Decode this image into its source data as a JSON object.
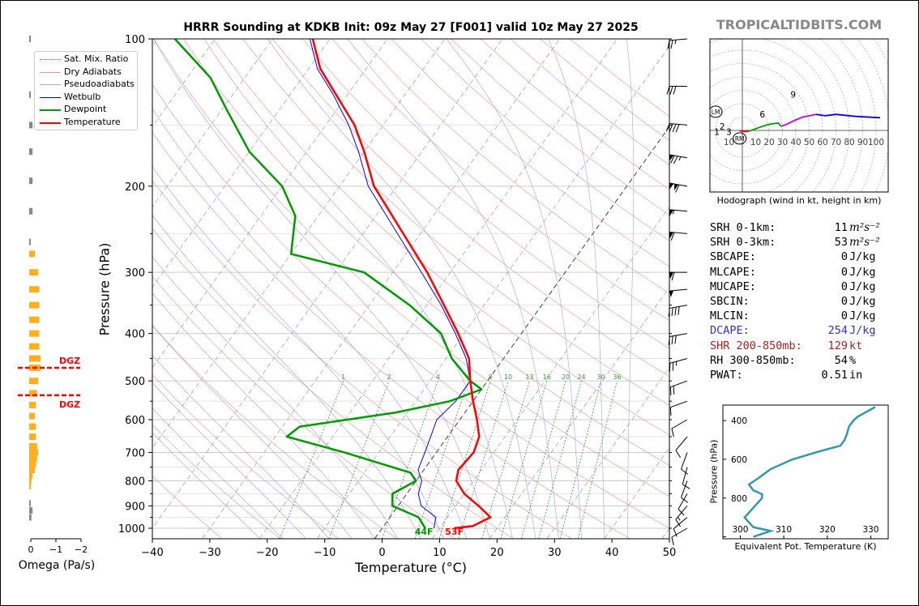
{
  "title": "HRRR Sounding at KDKB Init: 09z May 27 [F001] valid 10z May 27 2025",
  "site": "TROPICALTIDBITS.COM",
  "colors": {
    "temp": "#ff0000",
    "dew": "#009900",
    "wetbulb": "#0000ff",
    "dry": "#e89a9a",
    "moist": "#9a9ae0",
    "mix": "#3a9a3a",
    "dgz": "#ff0000",
    "omega": "#ffb020",
    "hodo": "#3399aa"
  },
  "chart_data": [
    {
      "type": "line",
      "name": "skewt",
      "xlabel": "Temperature (°C)",
      "ylabel": "Pressure (hPa)",
      "xlim": [
        -40,
        50
      ],
      "ylim": [
        1050,
        100
      ],
      "x_ticks": [
        "−40",
        "−30",
        "−20",
        "−10",
        "0",
        "10",
        "20",
        "30",
        "40",
        "50"
      ],
      "y_ticks": [
        "100",
        "200",
        "300",
        "400",
        "500",
        "600",
        "700",
        "800",
        "900",
        "1000"
      ],
      "legend": [
        "Sat. Mix. Ratio",
        "Dry Adiabats",
        "Pseudoadiabats",
        "Wetbulb",
        "Dewpoint",
        "Temperature"
      ],
      "series": [
        {
          "name": "Temperature",
          "points": [
            [
              1000,
              12.5
            ],
            [
              990,
              15.5
            ],
            [
              950,
              17.5
            ],
            [
              900,
              14
            ],
            [
              850,
              10
            ],
            [
              800,
              7
            ],
            [
              760,
              6
            ],
            [
              700,
              6.5
            ],
            [
              650,
              5.5
            ],
            [
              600,
              3
            ],
            [
              550,
              0
            ],
            [
              500,
              -3
            ],
            [
              450,
              -6
            ],
            [
              400,
              -11
            ],
            [
              350,
              -17
            ],
            [
              300,
              -24
            ],
            [
              250,
              -33
            ],
            [
              200,
              -44
            ],
            [
              170,
              -50
            ],
            [
              150,
              -55
            ],
            [
              130,
              -62
            ],
            [
              115,
              -68
            ],
            [
              100,
              -73
            ]
          ]
        },
        {
          "name": "Dewpoint",
          "points": [
            [
              1000,
              7.5
            ],
            [
              950,
              5
            ],
            [
              900,
              -1
            ],
            [
              850,
              -2.5
            ],
            [
              800,
              0
            ],
            [
              770,
              -2
            ],
            [
              700,
              -16
            ],
            [
              650,
              -28
            ],
            [
              620,
              -27
            ],
            [
              580,
              -12
            ],
            [
              550,
              -4
            ],
            [
              520,
              0
            ],
            [
              500,
              -3
            ],
            [
              450,
              -9
            ],
            [
              400,
              -14
            ],
            [
              350,
              -23
            ],
            [
              300,
              -35
            ],
            [
              275,
              -50
            ],
            [
              230,
              -54
            ],
            [
              200,
              -60
            ],
            [
              170,
              -70
            ],
            [
              140,
              -79
            ],
            [
              120,
              -86
            ],
            [
              100,
              -97
            ]
          ]
        },
        {
          "name": "Wetbulb",
          "points": [
            [
              1000,
              9
            ],
            [
              950,
              8
            ],
            [
              900,
              4
            ],
            [
              850,
              2
            ],
            [
              800,
              1
            ],
            [
              760,
              -1
            ],
            [
              700,
              -2
            ],
            [
              600,
              -4
            ],
            [
              550,
              -3
            ],
            [
              500,
              -3
            ],
            [
              450,
              -6.5
            ],
            [
              400,
              -11.5
            ],
            [
              350,
              -17.5
            ],
            [
              300,
              -25
            ],
            [
              250,
              -34
            ],
            [
              200,
              -45
            ],
            [
              170,
              -51
            ],
            [
              150,
              -56
            ],
            [
              130,
              -62.5
            ],
            [
              115,
              -68.5
            ],
            [
              100,
              -73.5
            ]
          ]
        }
      ],
      "mix_ratio_labels": [
        "1",
        "2",
        "4",
        "6",
        "8",
        "10",
        "13",
        "16",
        "20",
        "24",
        "30",
        "36"
      ],
      "surface_dewpoint_label": "44F",
      "surface_temperature_label": "53F",
      "wind_barbs": [
        {
          "p": 1000,
          "dir": 240,
          "kt": 10
        },
        {
          "p": 950,
          "dir": 230,
          "kt": 10
        },
        {
          "p": 900,
          "dir": 220,
          "kt": 15
        },
        {
          "p": 850,
          "dir": 210,
          "kt": 10
        },
        {
          "p": 800,
          "dir": 200,
          "kt": 10
        },
        {
          "p": 750,
          "dir": 195,
          "kt": 10
        },
        {
          "p": 700,
          "dir": 200,
          "kt": 10
        },
        {
          "p": 650,
          "dir": 220,
          "kt": 10
        },
        {
          "p": 600,
          "dir": 240,
          "kt": 10
        },
        {
          "p": 550,
          "dir": 250,
          "kt": 10
        },
        {
          "p": 500,
          "dir": 250,
          "kt": 20
        },
        {
          "p": 450,
          "dir": 255,
          "kt": 25
        },
        {
          "p": 400,
          "dir": 260,
          "kt": 30
        },
        {
          "p": 350,
          "dir": 260,
          "kt": 40
        },
        {
          "p": 325,
          "dir": 265,
          "kt": 50
        },
        {
          "p": 300,
          "dir": 270,
          "kt": 60
        },
        {
          "p": 250,
          "dir": 275,
          "kt": 60
        },
        {
          "p": 225,
          "dir": 275,
          "kt": 55
        },
        {
          "p": 200,
          "dir": 280,
          "kt": 110
        },
        {
          "p": 175,
          "dir": 280,
          "kt": 75
        },
        {
          "p": 150,
          "dir": 275,
          "kt": 40
        },
        {
          "p": 125,
          "dir": 270,
          "kt": 30
        },
        {
          "p": 100,
          "dir": 265,
          "kt": 25
        }
      ]
    },
    {
      "type": "bar",
      "name": "omega",
      "xlabel": "Omega (Pa/s)",
      "x_ticks": [
        "0",
        "−1",
        "−2"
      ],
      "dgz_label": "DGZ",
      "dgz_pressures": [
        470,
        535
      ],
      "bars": [
        [
          100,
          0.1
        ],
        [
          130,
          0.05
        ],
        [
          150,
          0.3
        ],
        [
          170,
          0.3
        ],
        [
          195,
          0.3
        ],
        [
          225,
          0.3
        ],
        [
          260,
          0.05
        ],
        [
          275,
          0.5
        ],
        [
          300,
          0.8
        ],
        [
          325,
          0.9
        ],
        [
          350,
          0.9
        ],
        [
          375,
          0.9
        ],
        [
          400,
          0.9
        ],
        [
          425,
          0.9
        ],
        [
          450,
          1.0
        ],
        [
          470,
          1.0
        ],
        [
          500,
          0.8
        ],
        [
          530,
          0.7
        ],
        [
          560,
          0.6
        ],
        [
          590,
          0.5
        ],
        [
          620,
          0.6
        ],
        [
          650,
          0.6
        ],
        [
          680,
          0.7
        ],
        [
          700,
          0.8
        ],
        [
          720,
          0.7
        ],
        [
          740,
          0.6
        ],
        [
          760,
          0.5
        ],
        [
          780,
          0.3
        ],
        [
          800,
          0.2
        ],
        [
          820,
          0.1
        ],
        [
          890,
          0.1
        ],
        [
          920,
          0.3
        ],
        [
          950,
          0.2
        ]
      ]
    },
    {
      "type": "line",
      "name": "hodograph",
      "caption": "Hodograph (wind in kt, height in km)",
      "ring_labels": [
        "10",
        "10",
        "20",
        "30",
        "40",
        "50",
        "60",
        "70",
        "80",
        "90",
        "100"
      ],
      "height_labels": [
        "1",
        "2",
        "3",
        "6",
        "9"
      ],
      "storm_motion_labels": [
        "LM",
        "RM"
      ],
      "points": [
        [
          -2,
          0
        ],
        [
          -1,
          -0.5
        ],
        [
          2,
          -0.8
        ],
        [
          5,
          -0.5
        ],
        [
          8,
          0.5
        ],
        [
          12,
          2
        ],
        [
          18,
          4
        ],
        [
          22,
          5
        ],
        [
          27,
          5.5
        ],
        [
          29,
          3
        ],
        [
          30,
          3.5
        ],
        [
          33,
          4.5
        ],
        [
          38,
          7
        ],
        [
          45,
          10
        ],
        [
          55,
          12
        ],
        [
          62,
          11
        ],
        [
          70,
          12
        ],
        [
          85,
          10.5
        ],
        [
          103,
          9.5
        ]
      ],
      "segments": [
        {
          "from": 0,
          "to": 3,
          "color": "#ff0000"
        },
        {
          "from": 3,
          "to": 9,
          "color": "#009900"
        },
        {
          "from": 9,
          "to": 14,
          "color": "#cc00cc"
        },
        {
          "from": 14,
          "to": 18,
          "color": "#0000ff"
        }
      ]
    },
    {
      "type": "line",
      "name": "equivalent-potential-temperature",
      "xlabel": "Equivalent Pot. Temperature (K)",
      "ylabel": "Pressure (hPa)",
      "x_ticks": [
        "300",
        "310",
        "320",
        "330"
      ],
      "y_ticks": [
        "400",
        "600",
        "800"
      ],
      "xlim": [
        296,
        334
      ],
      "ylim": [
        1010,
        320
      ],
      "points": [
        [
          1000,
          303
        ],
        [
          970,
          307
        ],
        [
          950,
          303
        ],
        [
          900,
          301
        ],
        [
          850,
          303
        ],
        [
          800,
          305
        ],
        [
          780,
          305
        ],
        [
          760,
          303
        ],
        [
          730,
          302
        ],
        [
          700,
          304
        ],
        [
          650,
          307
        ],
        [
          600,
          312
        ],
        [
          560,
          318
        ],
        [
          530,
          323
        ],
        [
          500,
          324
        ],
        [
          470,
          324.5
        ],
        [
          430,
          325
        ],
        [
          400,
          326
        ],
        [
          380,
          327
        ],
        [
          330,
          331
        ]
      ]
    }
  ],
  "stats": [
    {
      "label": "SRH 0-1km:",
      "value": "11",
      "unit": "m²s⁻²",
      "color": "#000"
    },
    {
      "label": "SRH 0-3km:",
      "value": "53",
      "unit": "m²s⁻²",
      "color": "#000"
    },
    {
      "label": "SBCAPE:",
      "value": "0",
      "unit": "J/kg",
      "color": "#000"
    },
    {
      "label": "MLCAPE:",
      "value": "0",
      "unit": "J/kg",
      "color": "#000"
    },
    {
      "label": "MUCAPE:",
      "value": "0",
      "unit": "J/kg",
      "color": "#000"
    },
    {
      "label": "SBCIN:",
      "value": "0",
      "unit": "J/kg",
      "color": "#000"
    },
    {
      "label": "MLCIN:",
      "value": "0",
      "unit": "J/kg",
      "color": "#000"
    },
    {
      "label": "DCAPE:",
      "value": "254",
      "unit": "J/kg",
      "color": "#3333cc"
    },
    {
      "label": "SHR 200-850mb:",
      "value": "129",
      "unit": "kt",
      "color": "#aa2222"
    },
    {
      "label": "RH 300-850mb:",
      "value": "54",
      "unit": "%",
      "color": "#000"
    },
    {
      "label": "PWAT:",
      "value": "0.51",
      "unit": "in",
      "color": "#000"
    }
  ]
}
